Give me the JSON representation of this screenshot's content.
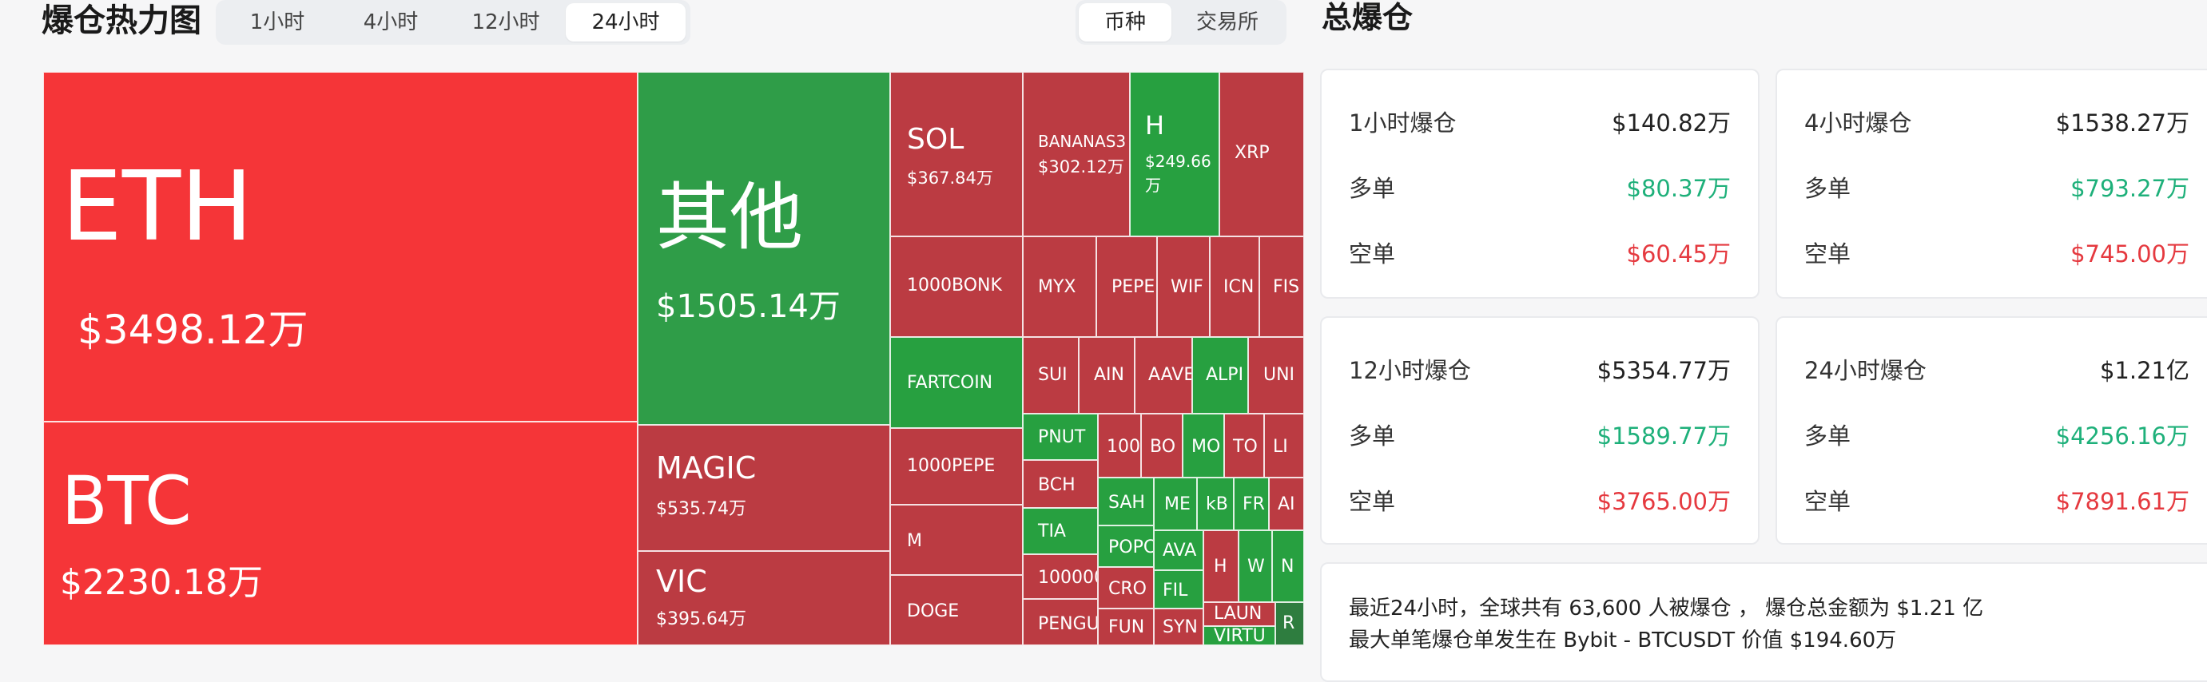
{
  "header": {
    "title": "爆仓热力图",
    "time_tabs": [
      "1小时",
      "4小时",
      "12小时",
      "24小时"
    ],
    "active_time_tab": "24小时",
    "group_tabs": [
      "币种",
      "交易所"
    ],
    "active_group_tab": "币种"
  },
  "heatmap": {
    "cells": [
      {
        "sym": "ETH",
        "amt": "$3498.12万",
        "color": "#f53538"
      },
      {
        "sym": "BTC",
        "amt": "$2230.18万",
        "color": "#f53538"
      },
      {
        "sym": "其他",
        "amt": "$1505.14万",
        "color": "#2f9d48"
      },
      {
        "sym": "MAGIC",
        "amt": "$535.74万",
        "color": "#bb3b42"
      },
      {
        "sym": "VIC",
        "amt": "$395.64万",
        "color": "#bb3b42"
      },
      {
        "sym": "SOL",
        "amt": "$367.84万",
        "color": "#bb3b42"
      },
      {
        "sym": "BANANAS3",
        "amt": "$302.12万",
        "color": "#bb3b42"
      },
      {
        "sym": "H",
        "amt": "$249.66万",
        "color": "#27a040"
      },
      {
        "sym": "XRP",
        "amt": "",
        "color": "#bb3b42"
      },
      {
        "sym": "1000BONK",
        "amt": "",
        "color": "#bb3b42"
      },
      {
        "sym": "MYX",
        "amt": "",
        "color": "#bb3b42"
      },
      {
        "sym": "PEPE",
        "amt": "",
        "color": "#bb3b42"
      },
      {
        "sym": "WIF",
        "amt": "",
        "color": "#bb3b42"
      },
      {
        "sym": "ICN",
        "amt": "",
        "color": "#bb3b42"
      },
      {
        "sym": "FIS",
        "amt": "",
        "color": "#bb3b42"
      },
      {
        "sym": "FARTCOIN",
        "amt": "",
        "color": "#27a040"
      },
      {
        "sym": "SUI",
        "amt": "",
        "color": "#bb3b42"
      },
      {
        "sym": "AIN",
        "amt": "",
        "color": "#bb3b42"
      },
      {
        "sym": "AAVE",
        "amt": "",
        "color": "#bb3b42"
      },
      {
        "sym": "ALPI",
        "amt": "",
        "color": "#27a040"
      },
      {
        "sym": "UNI",
        "amt": "",
        "color": "#bb3b42"
      },
      {
        "sym": "1000PEPE",
        "amt": "",
        "color": "#bb3b42"
      },
      {
        "sym": "PNUT",
        "amt": "",
        "color": "#27a040"
      },
      {
        "sym": "100",
        "amt": "",
        "color": "#bb3b42"
      },
      {
        "sym": "BO",
        "amt": "",
        "color": "#bb3b42"
      },
      {
        "sym": "MO",
        "amt": "",
        "color": "#27a040"
      },
      {
        "sym": "TO",
        "amt": "",
        "color": "#bb3b42"
      },
      {
        "sym": "LI",
        "amt": "",
        "color": "#bb3b42"
      },
      {
        "sym": "BCH",
        "amt": "",
        "color": "#bb3b42"
      },
      {
        "sym": "SAH",
        "amt": "",
        "color": "#27a040"
      },
      {
        "sym": "ME",
        "amt": "",
        "color": "#27a040"
      },
      {
        "sym": "kB",
        "amt": "",
        "color": "#27a040"
      },
      {
        "sym": "FR",
        "amt": "",
        "color": "#27a040"
      },
      {
        "sym": "AI",
        "amt": "",
        "color": "#bb3b42"
      },
      {
        "sym": "M",
        "amt": "",
        "color": "#bb3b42"
      },
      {
        "sym": "TIA",
        "amt": "",
        "color": "#27a040"
      },
      {
        "sym": "POPC",
        "amt": "",
        "color": "#27a040"
      },
      {
        "sym": "AVA",
        "amt": "",
        "color": "#27a040"
      },
      {
        "sym": "H",
        "amt": "",
        "color": "#bb3b42"
      },
      {
        "sym": "W",
        "amt": "",
        "color": "#27a040"
      },
      {
        "sym": "N",
        "amt": "",
        "color": "#27a040"
      },
      {
        "sym": "100000",
        "amt": "",
        "color": "#bb3b42"
      },
      {
        "sym": "CRO",
        "amt": "",
        "color": "#bb3b42"
      },
      {
        "sym": "FIL",
        "amt": "",
        "color": "#27a040"
      },
      {
        "sym": "DOGE",
        "amt": "",
        "color": "#bb3b42"
      },
      {
        "sym": "PENGU",
        "amt": "",
        "color": "#bb3b42"
      },
      {
        "sym": "FUN",
        "amt": "",
        "color": "#bb3b42"
      },
      {
        "sym": "SYN",
        "amt": "",
        "color": "#bb3b42"
      },
      {
        "sym": "LAUN",
        "amt": "",
        "color": "#bb3b42"
      },
      {
        "sym": "VIRTU",
        "amt": "",
        "color": "#27a040"
      },
      {
        "sym": "R",
        "amt": "",
        "color": "#2e7d3f"
      }
    ]
  },
  "summary": {
    "title": "总爆仓",
    "cards": [
      {
        "label": "1小时爆仓",
        "total": "$140.82万",
        "long_label": "多单",
        "long": "$80.37万",
        "short_label": "空单",
        "short": "$60.45万"
      },
      {
        "label": "4小时爆仓",
        "total": "$1538.27万",
        "long_label": "多单",
        "long": "$793.27万",
        "short_label": "空单",
        "short": "$745.00万"
      },
      {
        "label": "12小时爆仓",
        "total": "$5354.77万",
        "long_label": "多单",
        "long": "$1589.77万",
        "short_label": "空单",
        "short": "$3765.00万"
      },
      {
        "label": "24小时爆仓",
        "total": "$1.21亿",
        "long_label": "多单",
        "long": "$4256.16万",
        "short_label": "空单",
        "short": "$7891.61万"
      }
    ],
    "line1": "最近24小时，全球共有 63,600 人被爆仓 ， 爆仓总金额为 $1.21 亿",
    "line2": "最大单笔爆仓单发生在 Bybit - BTCUSDT 价值 $194.60万"
  },
  "colors": {
    "long": "#1eb07a",
    "short": "#e5393f",
    "heat_red": "#f53538",
    "heat_dark_red": "#bb3b42",
    "heat_green": "#2f9d48"
  }
}
